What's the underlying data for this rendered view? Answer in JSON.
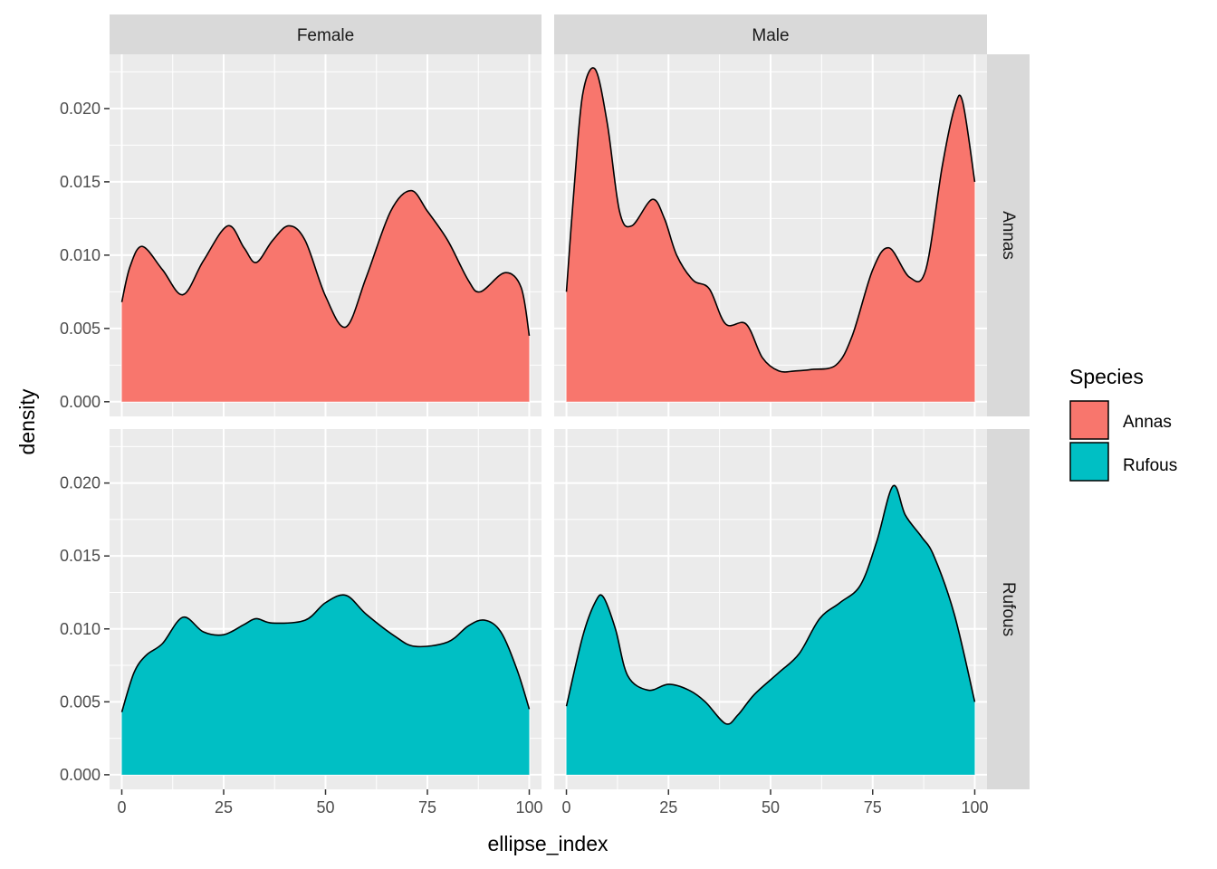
{
  "chart_data": {
    "type": "area",
    "facet_columns": [
      "Female",
      "Male"
    ],
    "facet_rows": [
      "Annas",
      "Rufous"
    ],
    "xlabel": "ellipse_index",
    "ylabel": "density",
    "x_ticks": [
      "0",
      "25",
      "50",
      "75",
      "100"
    ],
    "y_ticks": [
      "0.000",
      "0.005",
      "0.010",
      "0.015",
      "0.020"
    ],
    "xlim": [
      -3,
      103
    ],
    "ylim": [
      -0.001,
      0.0237
    ],
    "legend": {
      "title": "Species",
      "position": "right",
      "entries": [
        {
          "label": "Annas",
          "color": "#F8766D"
        },
        {
          "label": "Rufous",
          "color": "#00BFC4"
        }
      ]
    },
    "grid": true,
    "colors": {
      "panel_background": "#EBEBEB",
      "strip_background": "#D9D9D9",
      "grid": "#FFFFFF",
      "outline": "#000000"
    },
    "panels": [
      {
        "row": "Annas",
        "col": "Female",
        "fill": "#F8766D",
        "x": [
          0,
          2,
          5,
          10,
          15,
          20,
          26,
          30,
          33,
          37,
          41,
          45,
          50,
          55,
          60,
          66,
          71,
          75,
          80,
          85,
          88,
          94,
          98,
          100
        ],
        "y": [
          0.0068,
          0.0092,
          0.0106,
          0.009,
          0.0073,
          0.0096,
          0.012,
          0.0105,
          0.0095,
          0.011,
          0.012,
          0.011,
          0.0072,
          0.0051,
          0.0085,
          0.013,
          0.0144,
          0.013,
          0.011,
          0.0083,
          0.0075,
          0.0088,
          0.0078,
          0.0045
        ]
      },
      {
        "row": "Annas",
        "col": "Male",
        "fill": "#F8766D",
        "x": [
          0,
          2,
          4,
          7,
          10,
          13,
          16,
          21,
          24,
          27,
          31,
          35,
          39,
          44,
          48,
          52,
          56,
          60,
          66,
          70,
          75,
          79,
          84,
          88,
          92,
          95,
          97,
          100
        ],
        "y": [
          0.0075,
          0.015,
          0.021,
          0.0227,
          0.019,
          0.013,
          0.012,
          0.0138,
          0.0125,
          0.01,
          0.0083,
          0.0077,
          0.0053,
          0.0053,
          0.003,
          0.0021,
          0.0021,
          0.0022,
          0.0025,
          0.0045,
          0.009,
          0.0105,
          0.0085,
          0.009,
          0.016,
          0.02,
          0.0205,
          0.015
        ]
      },
      {
        "row": "Rufous",
        "col": "Female",
        "fill": "#00BFC4",
        "x": [
          0,
          3,
          6,
          10,
          15,
          20,
          25,
          30,
          33,
          37,
          45,
          50,
          55,
          60,
          67,
          72,
          80,
          85,
          89,
          93,
          97,
          100
        ],
        "y": [
          0.0043,
          0.007,
          0.0082,
          0.009,
          0.0108,
          0.0098,
          0.0096,
          0.0103,
          0.0107,
          0.0104,
          0.0106,
          0.0118,
          0.0123,
          0.011,
          0.0095,
          0.0088,
          0.0091,
          0.0102,
          0.0106,
          0.0098,
          0.0072,
          0.0045
        ]
      },
      {
        "row": "Rufous",
        "col": "Male",
        "fill": "#00BFC4",
        "x": [
          0,
          4,
          7,
          9,
          12,
          15,
          20,
          25,
          30,
          34,
          39,
          42,
          46,
          52,
          57,
          62,
          67,
          72,
          76,
          80,
          83,
          87,
          90,
          95,
          100
        ],
        "y": [
          0.0047,
          0.0095,
          0.0118,
          0.0122,
          0.01,
          0.0068,
          0.0058,
          0.0062,
          0.0058,
          0.005,
          0.0035,
          0.0041,
          0.0055,
          0.007,
          0.0083,
          0.0107,
          0.0118,
          0.013,
          0.016,
          0.0198,
          0.0178,
          0.0163,
          0.015,
          0.011,
          0.005
        ]
      }
    ]
  }
}
